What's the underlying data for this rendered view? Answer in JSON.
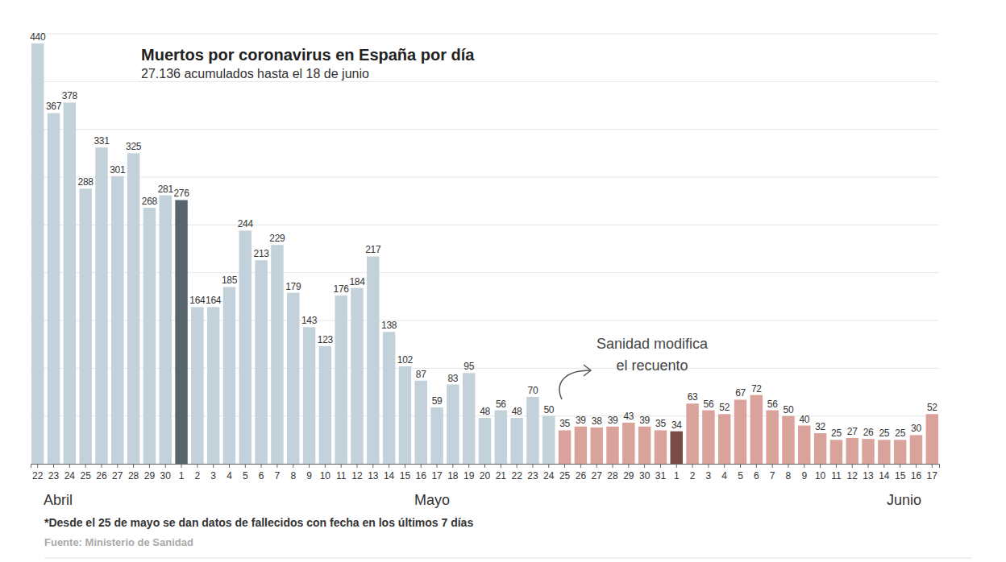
{
  "chart_data": {
    "type": "bar",
    "title": "Muertos por coronavirus en España por día",
    "subtitle": "27.136 acumulados hasta el 18 de junio",
    "annotation": [
      "Sanidad modifica",
      "el recuento"
    ],
    "month_labels": [
      "Abril",
      "Mayo",
      "Junio"
    ],
    "footnote": "*Desde el 25 de mayo se dan datos de fallecidos con fecha en los últimos 7 días",
    "source": "Fuente: Ministerio de Sanidad",
    "categories": [
      "22",
      "23",
      "24",
      "25",
      "26",
      "27",
      "28",
      "29",
      "30",
      "1",
      "2",
      "3",
      "4",
      "5",
      "6",
      "7",
      "8",
      "9",
      "10",
      "11",
      "12",
      "13",
      "14",
      "15",
      "16",
      "17",
      "18",
      "19",
      "20",
      "21",
      "22",
      "23",
      "24",
      "25",
      "26",
      "27",
      "28",
      "29",
      "30",
      "31",
      "1",
      "2",
      "3",
      "4",
      "5",
      "6",
      "7",
      "8",
      "9",
      "10",
      "11",
      "12",
      "13",
      "14",
      "15",
      "16",
      "17"
    ],
    "values": [
      440,
      367,
      378,
      288,
      331,
      301,
      325,
      268,
      281,
      276,
      164,
      164,
      185,
      244,
      213,
      229,
      179,
      143,
      123,
      176,
      184,
      217,
      138,
      102,
      87,
      59,
      83,
      95,
      48,
      56,
      48,
      70,
      50,
      35,
      39,
      38,
      39,
      43,
      39,
      35,
      34,
      63,
      56,
      52,
      67,
      72,
      56,
      50,
      40,
      32,
      25,
      27,
      26,
      25,
      25,
      30,
      52
    ],
    "colors": [
      "#c3d1db",
      "#c3d1db",
      "#c3d1db",
      "#c3d1db",
      "#c3d1db",
      "#c3d1db",
      "#c3d1db",
      "#c3d1db",
      "#c3d1db",
      "#59656d",
      "#c3d1db",
      "#c3d1db",
      "#c3d1db",
      "#c3d1db",
      "#c3d1db",
      "#c3d1db",
      "#c3d1db",
      "#c3d1db",
      "#c3d1db",
      "#c3d1db",
      "#c3d1db",
      "#c3d1db",
      "#c3d1db",
      "#c3d1db",
      "#c3d1db",
      "#c3d1db",
      "#c3d1db",
      "#c3d1db",
      "#c3d1db",
      "#c3d1db",
      "#c3d1db",
      "#c3d1db",
      "#c3d1db",
      "#d9a39c",
      "#d9a39c",
      "#d9a39c",
      "#d9a39c",
      "#d9a39c",
      "#d9a39c",
      "#d9a39c",
      "#7b4b46",
      "#d9a39c",
      "#d9a39c",
      "#d9a39c",
      "#d9a39c",
      "#d9a39c",
      "#d9a39c",
      "#d9a39c",
      "#d9a39c",
      "#d9a39c",
      "#d9a39c",
      "#d9a39c",
      "#d9a39c",
      "#d9a39c",
      "#d9a39c",
      "#d9a39c",
      "#d9a39c"
    ],
    "ylim": [
      0,
      450
    ],
    "yticks": [
      0,
      50,
      100,
      150,
      200,
      250,
      300,
      350,
      400,
      450
    ],
    "grid": true,
    "data_labels": true,
    "tick_labels": "x"
  }
}
